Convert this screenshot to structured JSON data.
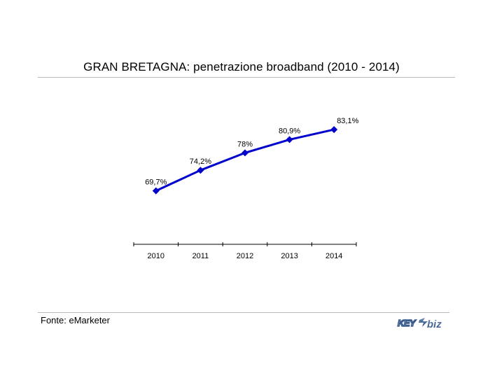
{
  "slide": {
    "title": "GRAN BRETAGNA: penetrazione broadband (2010 - 2014)",
    "source": "Fonte: eMarketer",
    "logo_text": "KEY4biz"
  },
  "chart_data": {
    "type": "line",
    "title": "",
    "categories": [
      "2010",
      "2011",
      "2012",
      "2013",
      "2014"
    ],
    "series": [
      {
        "values": [
          69.7,
          74.2,
          78,
          80.9,
          83.1
        ],
        "labels": [
          "69,7%",
          "74,2%",
          "78%",
          "80,9%",
          "83,1%"
        ],
        "color": "#0000cc",
        "marker": "diamond"
      }
    ],
    "ylim": [
      58,
      90
    ],
    "grid": false,
    "legend": "none"
  }
}
